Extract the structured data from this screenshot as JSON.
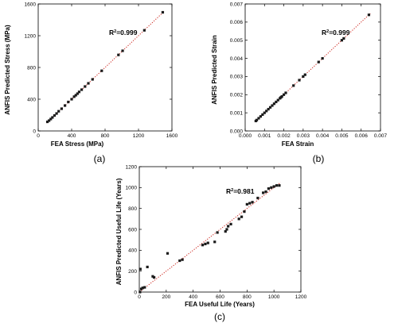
{
  "colors": {
    "point": "#1a1a1a",
    "fit_line": "#d0342c",
    "axis": "#000000"
  },
  "chart_data": [
    {
      "type": "scatter",
      "panel_label": "(a)",
      "xlabel": "FEA Stress (MPa)",
      "ylabel": "ANFIS Predicted Stress (MPa)",
      "annotation": {
        "prefix": "R",
        "sup": "2",
        "suffix": "=0.999"
      },
      "xlim": [
        0,
        1600
      ],
      "ylim": [
        0,
        1600
      ],
      "xticks": [
        0,
        400,
        800,
        1200,
        1600
      ],
      "yticks": [
        0,
        400,
        800,
        1200,
        1600
      ],
      "xtick_labels": [
        "0",
        "400",
        "800",
        "1200",
        "1600"
      ],
      "ytick_labels": [
        "0",
        "400",
        "800",
        "1200",
        "1600"
      ],
      "fit_line": [
        [
          100,
          100
        ],
        [
          1490,
          1490
        ]
      ],
      "points": [
        [
          110,
          115
        ],
        [
          130,
          130
        ],
        [
          150,
          150
        ],
        [
          170,
          170
        ],
        [
          195,
          195
        ],
        [
          220,
          220
        ],
        [
          245,
          248
        ],
        [
          280,
          280
        ],
        [
          320,
          320
        ],
        [
          360,
          365
        ],
        [
          400,
          400
        ],
        [
          430,
          432
        ],
        [
          450,
          450
        ],
        [
          470,
          470
        ],
        [
          490,
          492
        ],
        [
          520,
          520
        ],
        [
          560,
          560
        ],
        [
          600,
          600
        ],
        [
          650,
          650
        ],
        [
          760,
          758
        ],
        [
          960,
          958
        ],
        [
          1010,
          1010
        ],
        [
          1270,
          1268
        ],
        [
          1490,
          1495
        ]
      ]
    },
    {
      "type": "scatter",
      "panel_label": "(b)",
      "xlabel": "FEA Strain",
      "ylabel": "ANFIS Predicted Strain",
      "annotation": {
        "prefix": "R",
        "sup": "2",
        "suffix": "=0.999"
      },
      "xlim": [
        0,
        0.007
      ],
      "ylim": [
        0,
        0.007
      ],
      "xticks": [
        0,
        0.001,
        0.002,
        0.003,
        0.004,
        0.005,
        0.006,
        0.007
      ],
      "yticks": [
        0,
        0.001,
        0.002,
        0.003,
        0.004,
        0.005,
        0.006,
        0.007
      ],
      "xtick_labels": [
        "0.000",
        "0.001",
        "0.002",
        "0.003",
        "0.004",
        "0.005",
        "0.006",
        "0.007"
      ],
      "ytick_labels": [
        "0.000",
        "0.001",
        "0.002",
        "0.003",
        "0.004",
        "0.005",
        "0.006",
        "0.007"
      ],
      "fit_line": [
        [
          0.0005,
          0.0005
        ],
        [
          0.0065,
          0.0065
        ]
      ],
      "points": [
        [
          0.00055,
          0.00055
        ],
        [
          0.0006,
          0.0006
        ],
        [
          0.0007,
          0.0007
        ],
        [
          0.0008,
          0.0008
        ],
        [
          0.0009,
          0.0009
        ],
        [
          0.001,
          0.001
        ],
        [
          0.0011,
          0.0011
        ],
        [
          0.0012,
          0.0012
        ],
        [
          0.0013,
          0.0013
        ],
        [
          0.0014,
          0.0014
        ],
        [
          0.0015,
          0.0015
        ],
        [
          0.0016,
          0.0016
        ],
        [
          0.0017,
          0.0017
        ],
        [
          0.0018,
          0.0018
        ],
        [
          0.00185,
          0.00185
        ],
        [
          0.0019,
          0.0019
        ],
        [
          0.002,
          0.002
        ],
        [
          0.0021,
          0.0021
        ],
        [
          0.0025,
          0.0025
        ],
        [
          0.0028,
          0.0028
        ],
        [
          0.003,
          0.003
        ],
        [
          0.0031,
          0.0031
        ],
        [
          0.0038,
          0.0038
        ],
        [
          0.004,
          0.004
        ],
        [
          0.005,
          0.005
        ],
        [
          0.0051,
          0.0051
        ],
        [
          0.0064,
          0.0064
        ]
      ]
    },
    {
      "type": "scatter",
      "panel_label": "(c)",
      "xlabel": "FEA Useful Life (Years)",
      "ylabel": "ANFIS Predicted Useful Life (Years)",
      "annotation": {
        "prefix": "R",
        "sup": "2",
        "suffix": "=0.981"
      },
      "xlim": [
        0,
        1200
      ],
      "ylim": [
        0,
        1200
      ],
      "xticks": [
        0,
        200,
        400,
        600,
        800,
        1000,
        1200
      ],
      "yticks": [
        0,
        200,
        400,
        600,
        800,
        1000,
        1200
      ],
      "xtick_labels": [
        "0",
        "200",
        "400",
        "600",
        "800",
        "1000",
        "1200"
      ],
      "ytick_labels": [
        "0",
        "200",
        "400",
        "600",
        "800",
        "1000",
        "1200"
      ],
      "fit_line": [
        [
          0,
          0
        ],
        [
          1050,
          1050
        ]
      ],
      "points": [
        [
          5,
          0
        ],
        [
          8,
          220
        ],
        [
          15,
          30
        ],
        [
          25,
          40
        ],
        [
          40,
          45
        ],
        [
          60,
          240
        ],
        [
          100,
          150
        ],
        [
          110,
          140
        ],
        [
          210,
          370
        ],
        [
          300,
          300
        ],
        [
          320,
          310
        ],
        [
          470,
          450
        ],
        [
          490,
          460
        ],
        [
          510,
          470
        ],
        [
          560,
          480
        ],
        [
          580,
          570
        ],
        [
          640,
          580
        ],
        [
          650,
          600
        ],
        [
          660,
          630
        ],
        [
          680,
          650
        ],
        [
          740,
          700
        ],
        [
          760,
          720
        ],
        [
          780,
          770
        ],
        [
          800,
          840
        ],
        [
          820,
          850
        ],
        [
          840,
          860
        ],
        [
          880,
          900
        ],
        [
          920,
          950
        ],
        [
          940,
          960
        ],
        [
          960,
          990
        ],
        [
          980,
          1000
        ],
        [
          1000,
          1010
        ],
        [
          1020,
          1020
        ],
        [
          1040,
          1020
        ]
      ]
    }
  ]
}
